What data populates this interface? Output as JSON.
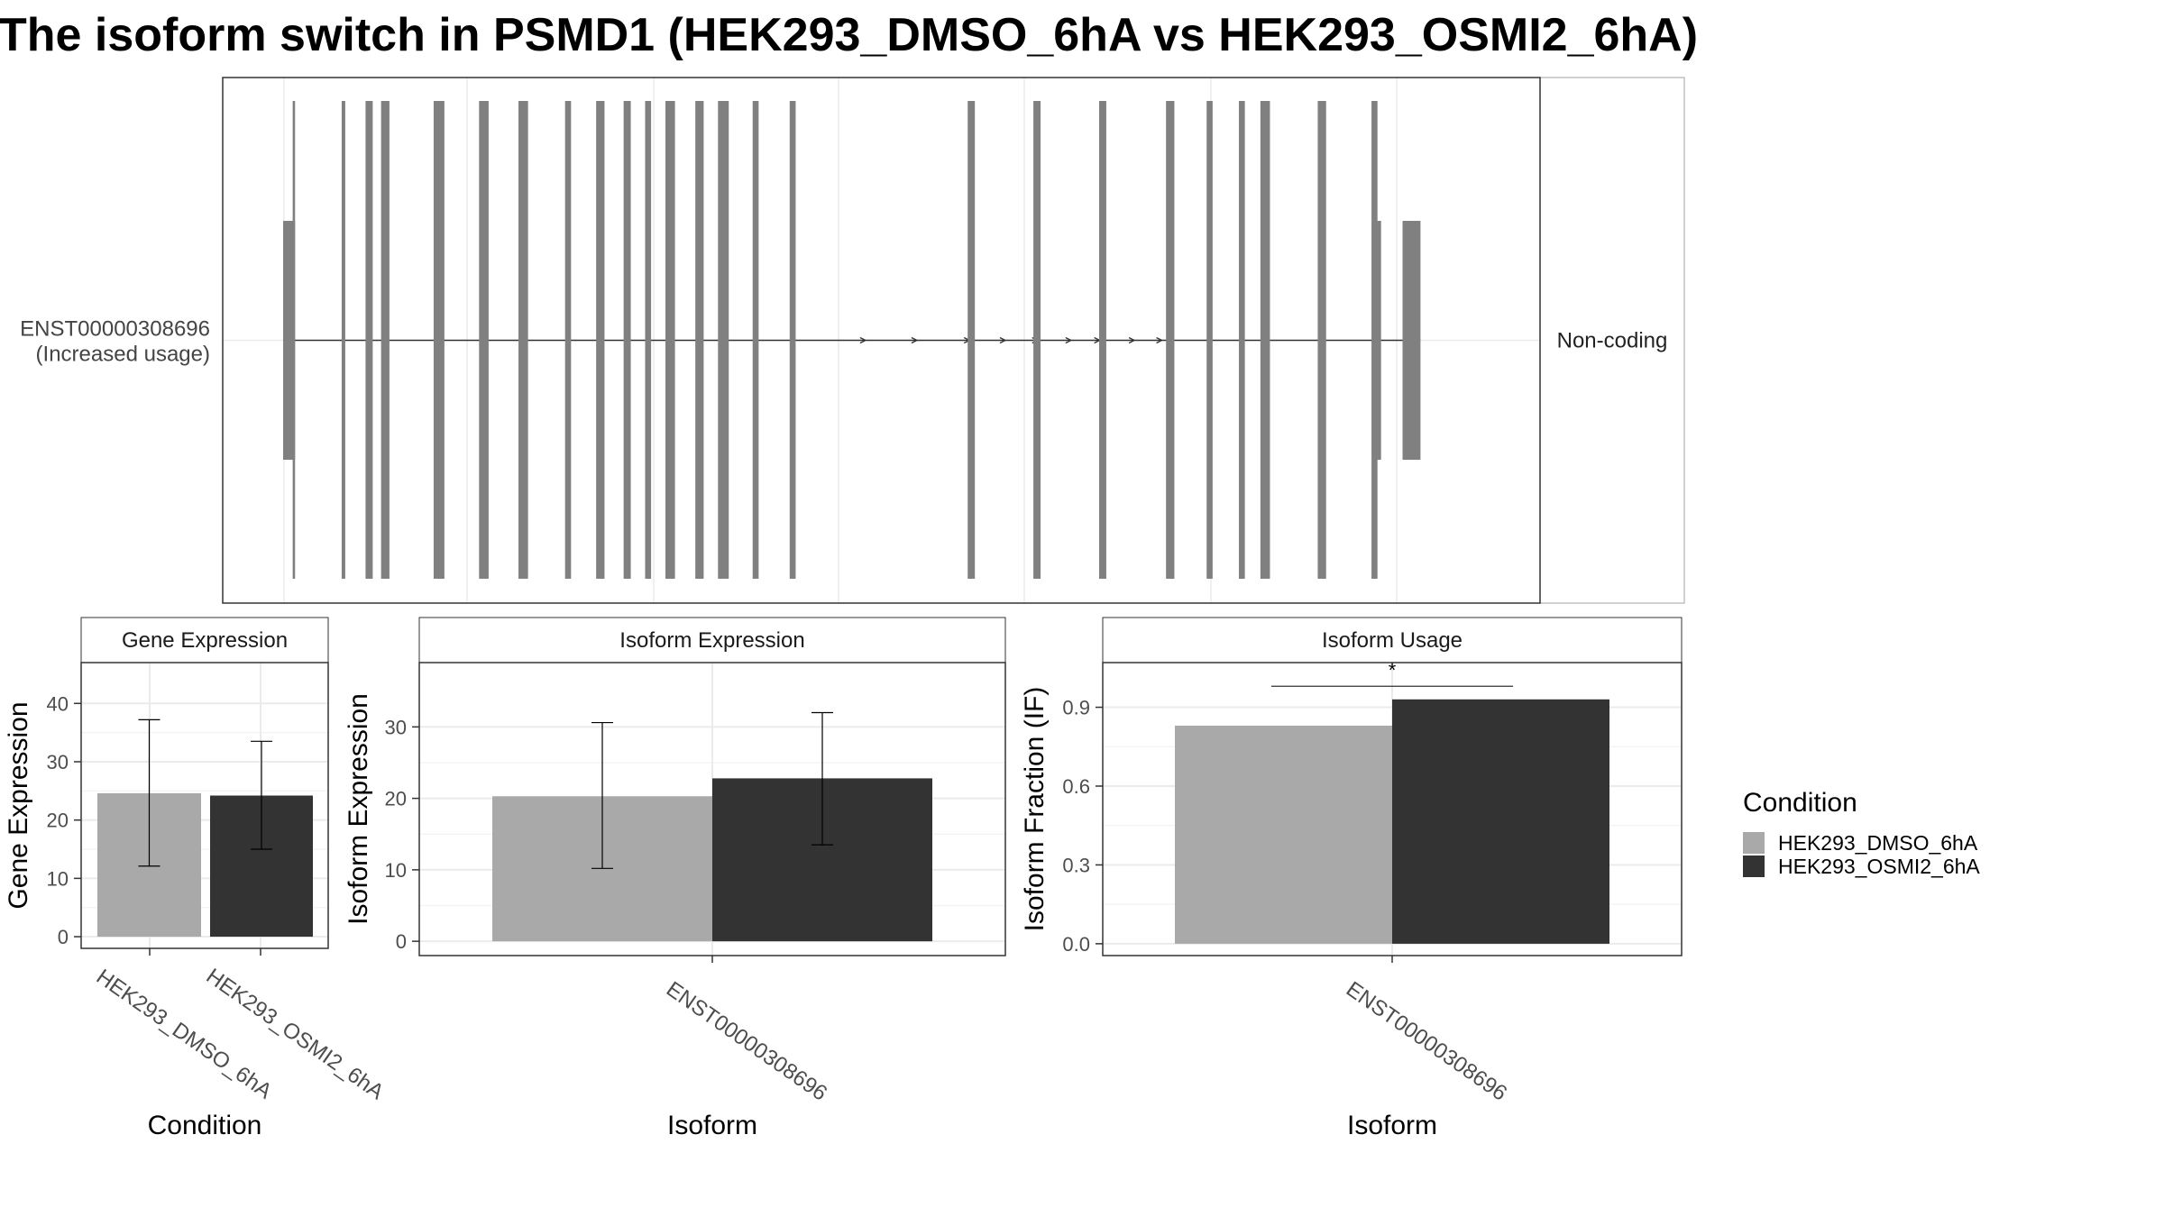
{
  "title": "The isoform switch in PSMD1 (HEK293_DMSO_6hA vs HEK293_OSMI2_6hA)",
  "colors": {
    "exon": "#808080",
    "intron": "#333333",
    "dmso": "#A9A9A9",
    "osmi": "#333333",
    "grid": "#EBEBEB",
    "panel_border": "#333333",
    "strip_border": "#333333"
  },
  "chart_data": [
    {
      "type": "gene_structure",
      "transcript_id": "ENST00000308696",
      "transcript_label_lines": [
        "ENST00000308696",
        "(Increased usage)"
      ],
      "side_label": "Non-coding",
      "strand": "+",
      "xlim": [
        0,
        1000
      ],
      "utr_exons": [
        [
          0,
          10
        ],
        [
          912,
          919
        ],
        [
          937,
          952
        ]
      ],
      "coding_exons": [
        [
          8,
          10
        ],
        [
          49,
          52
        ],
        [
          69,
          75
        ],
        [
          82,
          89
        ],
        [
          126,
          135
        ],
        [
          164,
          172
        ],
        [
          197,
          205
        ],
        [
          236,
          241
        ],
        [
          262,
          269
        ],
        [
          285,
          291
        ],
        [
          303,
          308
        ],
        [
          320,
          328
        ],
        [
          345,
          352
        ],
        [
          364,
          373
        ],
        [
          393,
          398
        ],
        [
          424,
          429
        ],
        [
          573,
          579
        ],
        [
          628,
          634
        ],
        [
          683,
          689
        ],
        [
          739,
          746
        ],
        [
          773,
          778
        ],
        [
          800,
          805
        ],
        [
          818,
          826
        ],
        [
          866,
          873
        ],
        [
          911,
          916
        ]
      ],
      "arrows": [
        486,
        529,
        573,
        603,
        630,
        658,
        682,
        711,
        734
      ]
    },
    {
      "type": "bar",
      "strip": "Gene Expression",
      "xlabel": "Condition",
      "ylabel": "Gene Expression",
      "ylim": [
        -2,
        47
      ],
      "yticks": [
        0,
        10,
        20,
        30,
        40
      ],
      "categories": [
        "HEK293_DMSO_6hA",
        "HEK293_OSMI2_6hA"
      ],
      "values": [
        24.6,
        24.2
      ],
      "err_low": [
        12.1,
        15.0
      ],
      "err_high": [
        37.2,
        33.5
      ]
    },
    {
      "type": "bar",
      "strip": "Isoform Expression",
      "xlabel": "Isoform",
      "ylabel": "Isoform Expression",
      "ylim": [
        -2,
        39
      ],
      "yticks": [
        0,
        10,
        20,
        30
      ],
      "categories": [
        "ENST00000308696"
      ],
      "series": [
        {
          "name": "HEK293_DMSO_6hA",
          "values": [
            20.3
          ],
          "err_low": [
            10.2
          ],
          "err_high": [
            30.6
          ]
        },
        {
          "name": "HEK293_OSMI2_6hA",
          "values": [
            22.8
          ],
          "err_low": [
            13.5
          ],
          "err_high": [
            32.0
          ]
        }
      ]
    },
    {
      "type": "bar",
      "strip": "Isoform Usage",
      "xlabel": "Isoform",
      "ylabel": "Isoform Fraction (IF)",
      "ylim": [
        -0.045,
        1.07
      ],
      "yticks": [
        0.0,
        0.3,
        0.6,
        0.9
      ],
      "ytick_labels": [
        "0.0",
        "0.3",
        "0.6",
        "0.9"
      ],
      "categories": [
        "ENST00000308696"
      ],
      "series": [
        {
          "name": "HEK293_DMSO_6hA",
          "values": [
            0.83
          ]
        },
        {
          "name": "HEK293_OSMI2_6hA",
          "values": [
            0.93
          ]
        }
      ],
      "significance": {
        "label": "*",
        "y": 0.98
      }
    }
  ],
  "legend": {
    "title": "Condition",
    "items": [
      {
        "label": "HEK293_DMSO_6hA",
        "color": "#A9A9A9"
      },
      {
        "label": "HEK293_OSMI2_6hA",
        "color": "#333333"
      }
    ]
  }
}
